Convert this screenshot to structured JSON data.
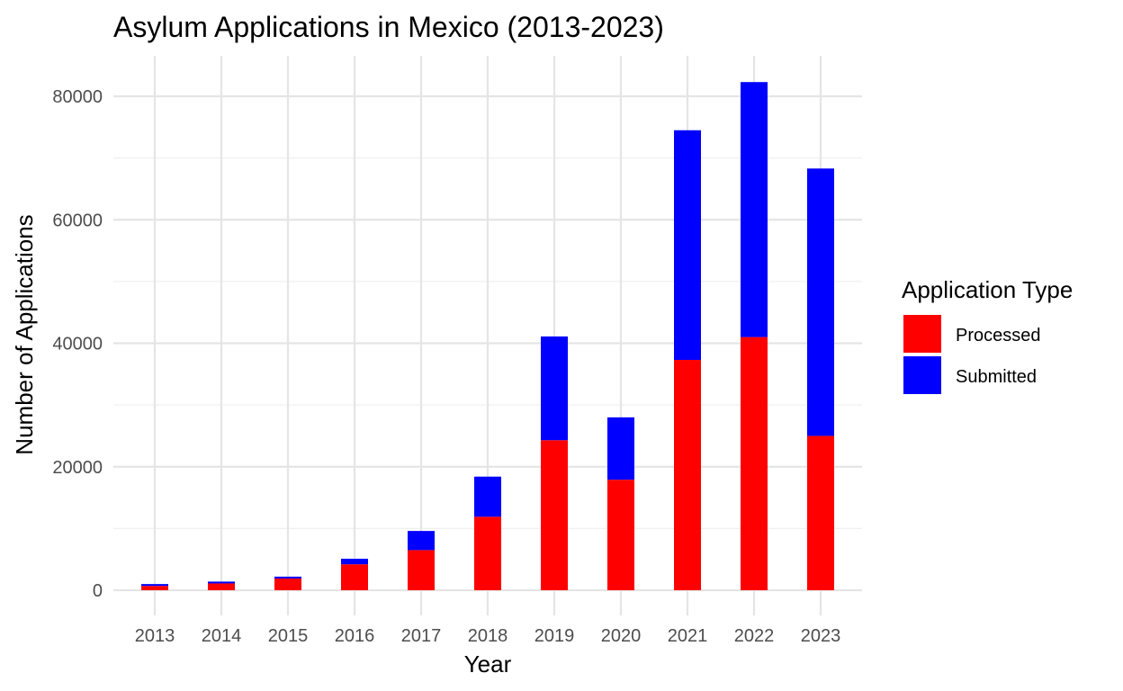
{
  "chart_data": {
    "type": "bar",
    "stacked": true,
    "title": "Asylum Applications in Mexico (2013-2023)",
    "xlabel": "Year",
    "ylabel": "Number of Applications",
    "categories": [
      "2013",
      "2014",
      "2015",
      "2016",
      "2017",
      "2018",
      "2019",
      "2020",
      "2021",
      "2022",
      "2023"
    ],
    "series": [
      {
        "name": "Processed",
        "color": "#ff0000",
        "values": [
          700,
          1100,
          1900,
          4200,
          6500,
          11900,
          24300,
          17900,
          37300,
          41000,
          25000
        ]
      },
      {
        "name": "Submitted",
        "color": "#0000ff",
        "values": [
          300,
          300,
          300,
          900,
          3100,
          6500,
          16800,
          10100,
          37200,
          41300,
          43300
        ]
      }
    ],
    "ylim": [
      0,
      80000
    ],
    "yticks": [
      0,
      20000,
      40000,
      60000,
      80000
    ],
    "ytick_labels": [
      "0",
      "20000",
      "40000",
      "60000",
      "80000"
    ],
    "grid": true,
    "legend": {
      "title": "Application Type",
      "position": "right"
    }
  }
}
